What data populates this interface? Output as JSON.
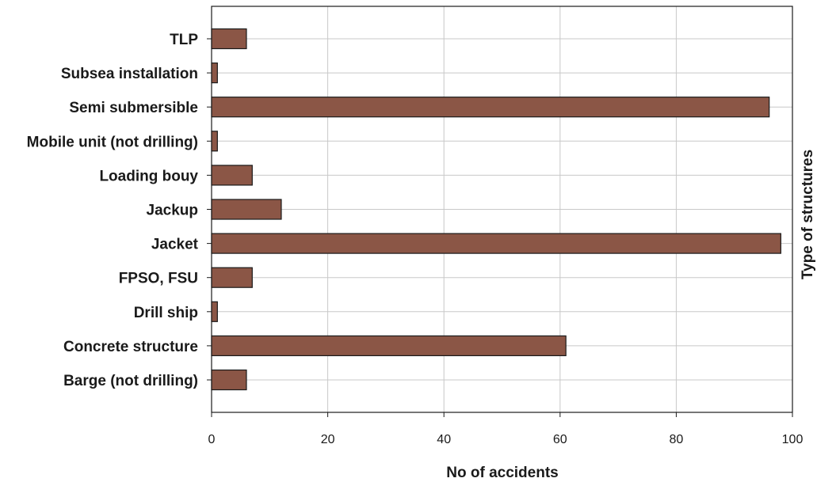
{
  "chart_data": {
    "type": "bar",
    "orientation": "horizontal",
    "title": "",
    "xlabel": "No of accidents",
    "ylabel": "Type of structures",
    "ylabel_position": "right",
    "categories": [
      "Barge (not drilling)",
      "Concrete structure",
      "Drill ship",
      "FPSO, FSU",
      "Jacket",
      "Jackup",
      "Loading bouy",
      "Mobile unit (not drilling)",
      "Semi submersible",
      "Subsea installation",
      "TLP"
    ],
    "values": [
      6,
      61,
      1,
      7,
      98,
      12,
      7,
      1,
      96,
      1,
      6
    ],
    "xlim": [
      0,
      100
    ],
    "xticks": [
      0,
      20,
      40,
      60,
      80,
      100
    ],
    "xtick_labels": [
      "0",
      "20",
      "40",
      "60",
      "80",
      "100"
    ],
    "grid": true,
    "bar_color": "#8b5646",
    "bar_edge_color": "#1a1a1a",
    "grid_color": "#c8c8c8"
  }
}
